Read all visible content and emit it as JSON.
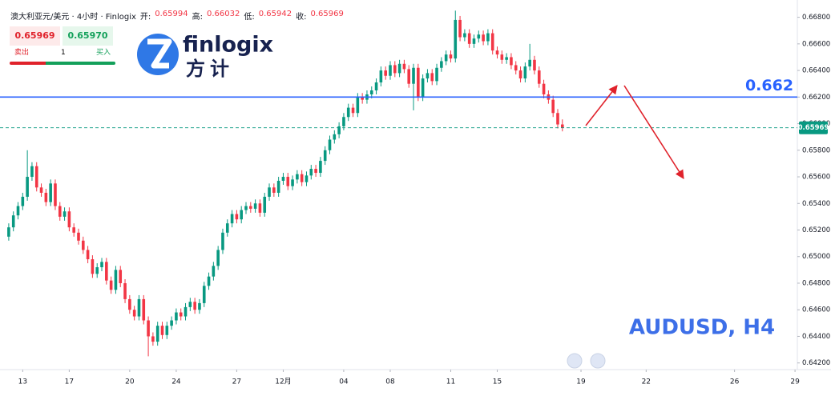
{
  "header": {
    "symbol": "澳大利亚元/美元 · 4小时 · Finlogix",
    "fields": [
      {
        "label": "开:",
        "value": "0.65994"
      },
      {
        "label": "高:",
        "value": "0.66032"
      },
      {
        "label": "低:",
        "value": "0.65942"
      },
      {
        "label": "收:",
        "value": "0.65969"
      }
    ]
  },
  "trade_panel": {
    "sell_price": "0.65969",
    "buy_price": "0.65970",
    "sell": "卖出",
    "quantity": "1",
    "buy": "买入"
  },
  "logo": {
    "name": "finlogix",
    "chinese": "方计"
  },
  "chart_data": {
    "type": "candlestick",
    "watermark": "AUDUSD, H4",
    "up_color": "#089981",
    "down_color": "#f23645",
    "level": 0.662,
    "level_color": "#2962ff",
    "last_price": 0.65969,
    "open": [
      0.6515,
      0.6522,
      0.6531,
      0.6538,
      0.6545,
      0.656,
      0.6568,
      0.6552,
      0.6548,
      0.6541,
      0.6555,
      0.6538,
      0.653,
      0.6534,
      0.6522,
      0.6518,
      0.6512,
      0.6505,
      0.6498,
      0.6487,
      0.6492,
      0.6496,
      0.6482,
      0.6475,
      0.649,
      0.648,
      0.6468,
      0.646,
      0.6455,
      0.6468,
      0.6452,
      0.644,
      0.6436,
      0.6448,
      0.6441,
      0.6448,
      0.6452,
      0.6458,
      0.6455,
      0.6462,
      0.6466,
      0.646,
      0.6465,
      0.6478,
      0.6485,
      0.6493,
      0.6505,
      0.6518,
      0.6525,
      0.6532,
      0.6528,
      0.6535,
      0.6538,
      0.6536,
      0.654,
      0.6533,
      0.6545,
      0.6552,
      0.6548,
      0.6557,
      0.656,
      0.6553,
      0.6558,
      0.6562,
      0.6556,
      0.6561,
      0.6566,
      0.6563,
      0.6572,
      0.658,
      0.6588,
      0.6592,
      0.6598,
      0.6605,
      0.6612,
      0.6608,
      0.662,
      0.6618,
      0.6622,
      0.6625,
      0.6631,
      0.664,
      0.6636,
      0.6644,
      0.6638,
      0.6645,
      0.6641,
      0.663,
      0.6642,
      0.662,
      0.6634,
      0.6638,
      0.6632,
      0.6642,
      0.6647,
      0.6652,
      0.6649,
      0.6678,
      0.6665,
      0.6668,
      0.666,
      0.6664,
      0.6667,
      0.6662,
      0.6668,
      0.6655,
      0.6652,
      0.6648,
      0.665,
      0.6644,
      0.664,
      0.6634,
      0.6643,
      0.6648,
      0.664,
      0.663,
      0.6622,
      0.6618,
      0.6608,
      0.65994
    ],
    "high": [
      0.6525,
      0.6534,
      0.6541,
      0.6548,
      0.658,
      0.6571,
      0.6571,
      0.6555,
      0.6551,
      0.6558,
      0.6558,
      0.6541,
      0.6537,
      0.6537,
      0.6525,
      0.6521,
      0.6515,
      0.6508,
      0.6501,
      0.6495,
      0.6499,
      0.6499,
      0.6485,
      0.6493,
      0.6493,
      0.6483,
      0.6471,
      0.6463,
      0.6471,
      0.6471,
      0.6455,
      0.6443,
      0.6451,
      0.6451,
      0.6451,
      0.6455,
      0.6461,
      0.6461,
      0.6465,
      0.6469,
      0.6469,
      0.6468,
      0.6481,
      0.6488,
      0.6496,
      0.6508,
      0.6521,
      0.6528,
      0.6535,
      0.6535,
      0.6538,
      0.6541,
      0.6541,
      0.6543,
      0.6543,
      0.6548,
      0.6555,
      0.6555,
      0.656,
      0.6563,
      0.6563,
      0.6561,
      0.6565,
      0.6565,
      0.6564,
      0.6569,
      0.6569,
      0.6575,
      0.6583,
      0.6591,
      0.6595,
      0.6601,
      0.6608,
      0.6615,
      0.6615,
      0.6623,
      0.6623,
      0.6625,
      0.6628,
      0.6634,
      0.6643,
      0.6643,
      0.6647,
      0.6647,
      0.6648,
      0.6648,
      0.6644,
      0.6645,
      0.6645,
      0.6637,
      0.6641,
      0.6641,
      0.6645,
      0.665,
      0.6655,
      0.6655,
      0.6685,
      0.6681,
      0.6671,
      0.6671,
      0.6667,
      0.667,
      0.667,
      0.6671,
      0.6671,
      0.6658,
      0.6655,
      0.6653,
      0.6653,
      0.6647,
      0.6643,
      0.6646,
      0.666,
      0.6651,
      0.6643,
      0.6633,
      0.6625,
      0.6621,
      0.6611,
      0.66032
    ],
    "low": [
      0.6512,
      0.6519,
      0.6528,
      0.6535,
      0.6542,
      0.6557,
      0.6549,
      0.6545,
      0.6538,
      0.6538,
      0.6535,
      0.6527,
      0.6527,
      0.6519,
      0.6515,
      0.6509,
      0.6502,
      0.6495,
      0.6484,
      0.6484,
      0.6489,
      0.6479,
      0.6472,
      0.6472,
      0.6477,
      0.6465,
      0.6457,
      0.6452,
      0.6452,
      0.6449,
      0.6425,
      0.6433,
      0.6433,
      0.6438,
      0.6438,
      0.6445,
      0.6449,
      0.6452,
      0.6452,
      0.6459,
      0.6457,
      0.6457,
      0.6462,
      0.6475,
      0.6482,
      0.649,
      0.6502,
      0.6515,
      0.6522,
      0.6525,
      0.6525,
      0.6532,
      0.6533,
      0.6533,
      0.653,
      0.653,
      0.6542,
      0.6545,
      0.6545,
      0.6554,
      0.655,
      0.655,
      0.6555,
      0.6553,
      0.6553,
      0.6558,
      0.656,
      0.656,
      0.6569,
      0.6577,
      0.6585,
      0.6589,
      0.6595,
      0.6602,
      0.6605,
      0.6605,
      0.6615,
      0.6615,
      0.6619,
      0.6622,
      0.6628,
      0.6633,
      0.6633,
      0.6635,
      0.6635,
      0.6638,
      0.6627,
      0.661,
      0.6617,
      0.6617,
      0.6631,
      0.6629,
      0.6629,
      0.6639,
      0.6644,
      0.6646,
      0.6646,
      0.6662,
      0.6662,
      0.6657,
      0.6657,
      0.6661,
      0.6659,
      0.6659,
      0.6652,
      0.6649,
      0.6645,
      0.6645,
      0.6641,
      0.6637,
      0.6631,
      0.6631,
      0.664,
      0.6637,
      0.6627,
      0.6619,
      0.6615,
      0.6605,
      0.65964,
      0.65942
    ],
    "close": [
      0.6522,
      0.6531,
      0.6538,
      0.6545,
      0.656,
      0.6568,
      0.6552,
      0.6548,
      0.6541,
      0.6555,
      0.6538,
      0.653,
      0.6534,
      0.6522,
      0.6518,
      0.6512,
      0.6505,
      0.6498,
      0.6487,
      0.6492,
      0.6496,
      0.6482,
      0.6475,
      0.649,
      0.648,
      0.6468,
      0.646,
      0.6455,
      0.6468,
      0.6452,
      0.644,
      0.6436,
      0.6448,
      0.6441,
      0.6448,
      0.6452,
      0.6458,
      0.6455,
      0.6462,
      0.6466,
      0.646,
      0.6465,
      0.6478,
      0.6485,
      0.6493,
      0.6505,
      0.6518,
      0.6525,
      0.6532,
      0.6528,
      0.6535,
      0.6538,
      0.6536,
      0.654,
      0.6533,
      0.6545,
      0.6552,
      0.6548,
      0.6557,
      0.656,
      0.6553,
      0.6558,
      0.6562,
      0.6556,
      0.6561,
      0.6566,
      0.6563,
      0.6572,
      0.658,
      0.6588,
      0.6592,
      0.6598,
      0.6605,
      0.6612,
      0.6608,
      0.662,
      0.6618,
      0.6622,
      0.6625,
      0.6631,
      0.664,
      0.6636,
      0.6644,
      0.6638,
      0.6645,
      0.6641,
      0.663,
      0.6642,
      0.662,
      0.6634,
      0.6638,
      0.6632,
      0.6642,
      0.6647,
      0.6652,
      0.6649,
      0.6678,
      0.6665,
      0.6668,
      0.666,
      0.6664,
      0.6667,
      0.6662,
      0.6668,
      0.6655,
      0.6652,
      0.6648,
      0.665,
      0.6644,
      0.664,
      0.6634,
      0.6643,
      0.6648,
      0.664,
      0.663,
      0.6622,
      0.6618,
      0.6608,
      0.65994,
      0.65969
    ],
    "xlim": [
      -0.5,
      169.5
    ],
    "xticks": [
      {
        "value": 3,
        "label": "13"
      },
      {
        "value": 13,
        "label": "17"
      },
      {
        "value": 26,
        "label": "20"
      },
      {
        "value": 36,
        "label": "24"
      },
      {
        "value": 49,
        "label": "27"
      },
      {
        "value": 59,
        "label": "12月"
      },
      {
        "value": 72,
        "label": "04"
      },
      {
        "value": 82,
        "label": "08"
      },
      {
        "value": 95,
        "label": "11"
      },
      {
        "value": 105,
        "label": "15"
      },
      {
        "value": 123,
        "label": "19"
      },
      {
        "value": 137,
        "label": "22"
      },
      {
        "value": 156,
        "label": "26"
      },
      {
        "value": 169,
        "label": "29"
      }
    ],
    "ylim": [
      0.6415,
      0.6693
    ],
    "yticks": [
      {
        "value": 0.642,
        "label": "0.64200"
      },
      {
        "value": 0.644,
        "label": "0.64400"
      },
      {
        "value": 0.646,
        "label": "0.64600"
      },
      {
        "value": 0.648,
        "label": "0.64800"
      },
      {
        "value": 0.65,
        "label": "0.65000"
      },
      {
        "value": 0.652,
        "label": "0.65200"
      },
      {
        "value": 0.654,
        "label": "0.65400"
      },
      {
        "value": 0.656,
        "label": "0.65600"
      },
      {
        "value": 0.658,
        "label": "0.65800"
      },
      {
        "value": 0.66,
        "label": "0.66000"
      },
      {
        "value": 0.662,
        "label": "0.66200"
      },
      {
        "value": 0.664,
        "label": "0.66400"
      },
      {
        "value": 0.666,
        "label": "0.66600"
      },
      {
        "value": 0.668,
        "label": "0.66800"
      }
    ]
  }
}
